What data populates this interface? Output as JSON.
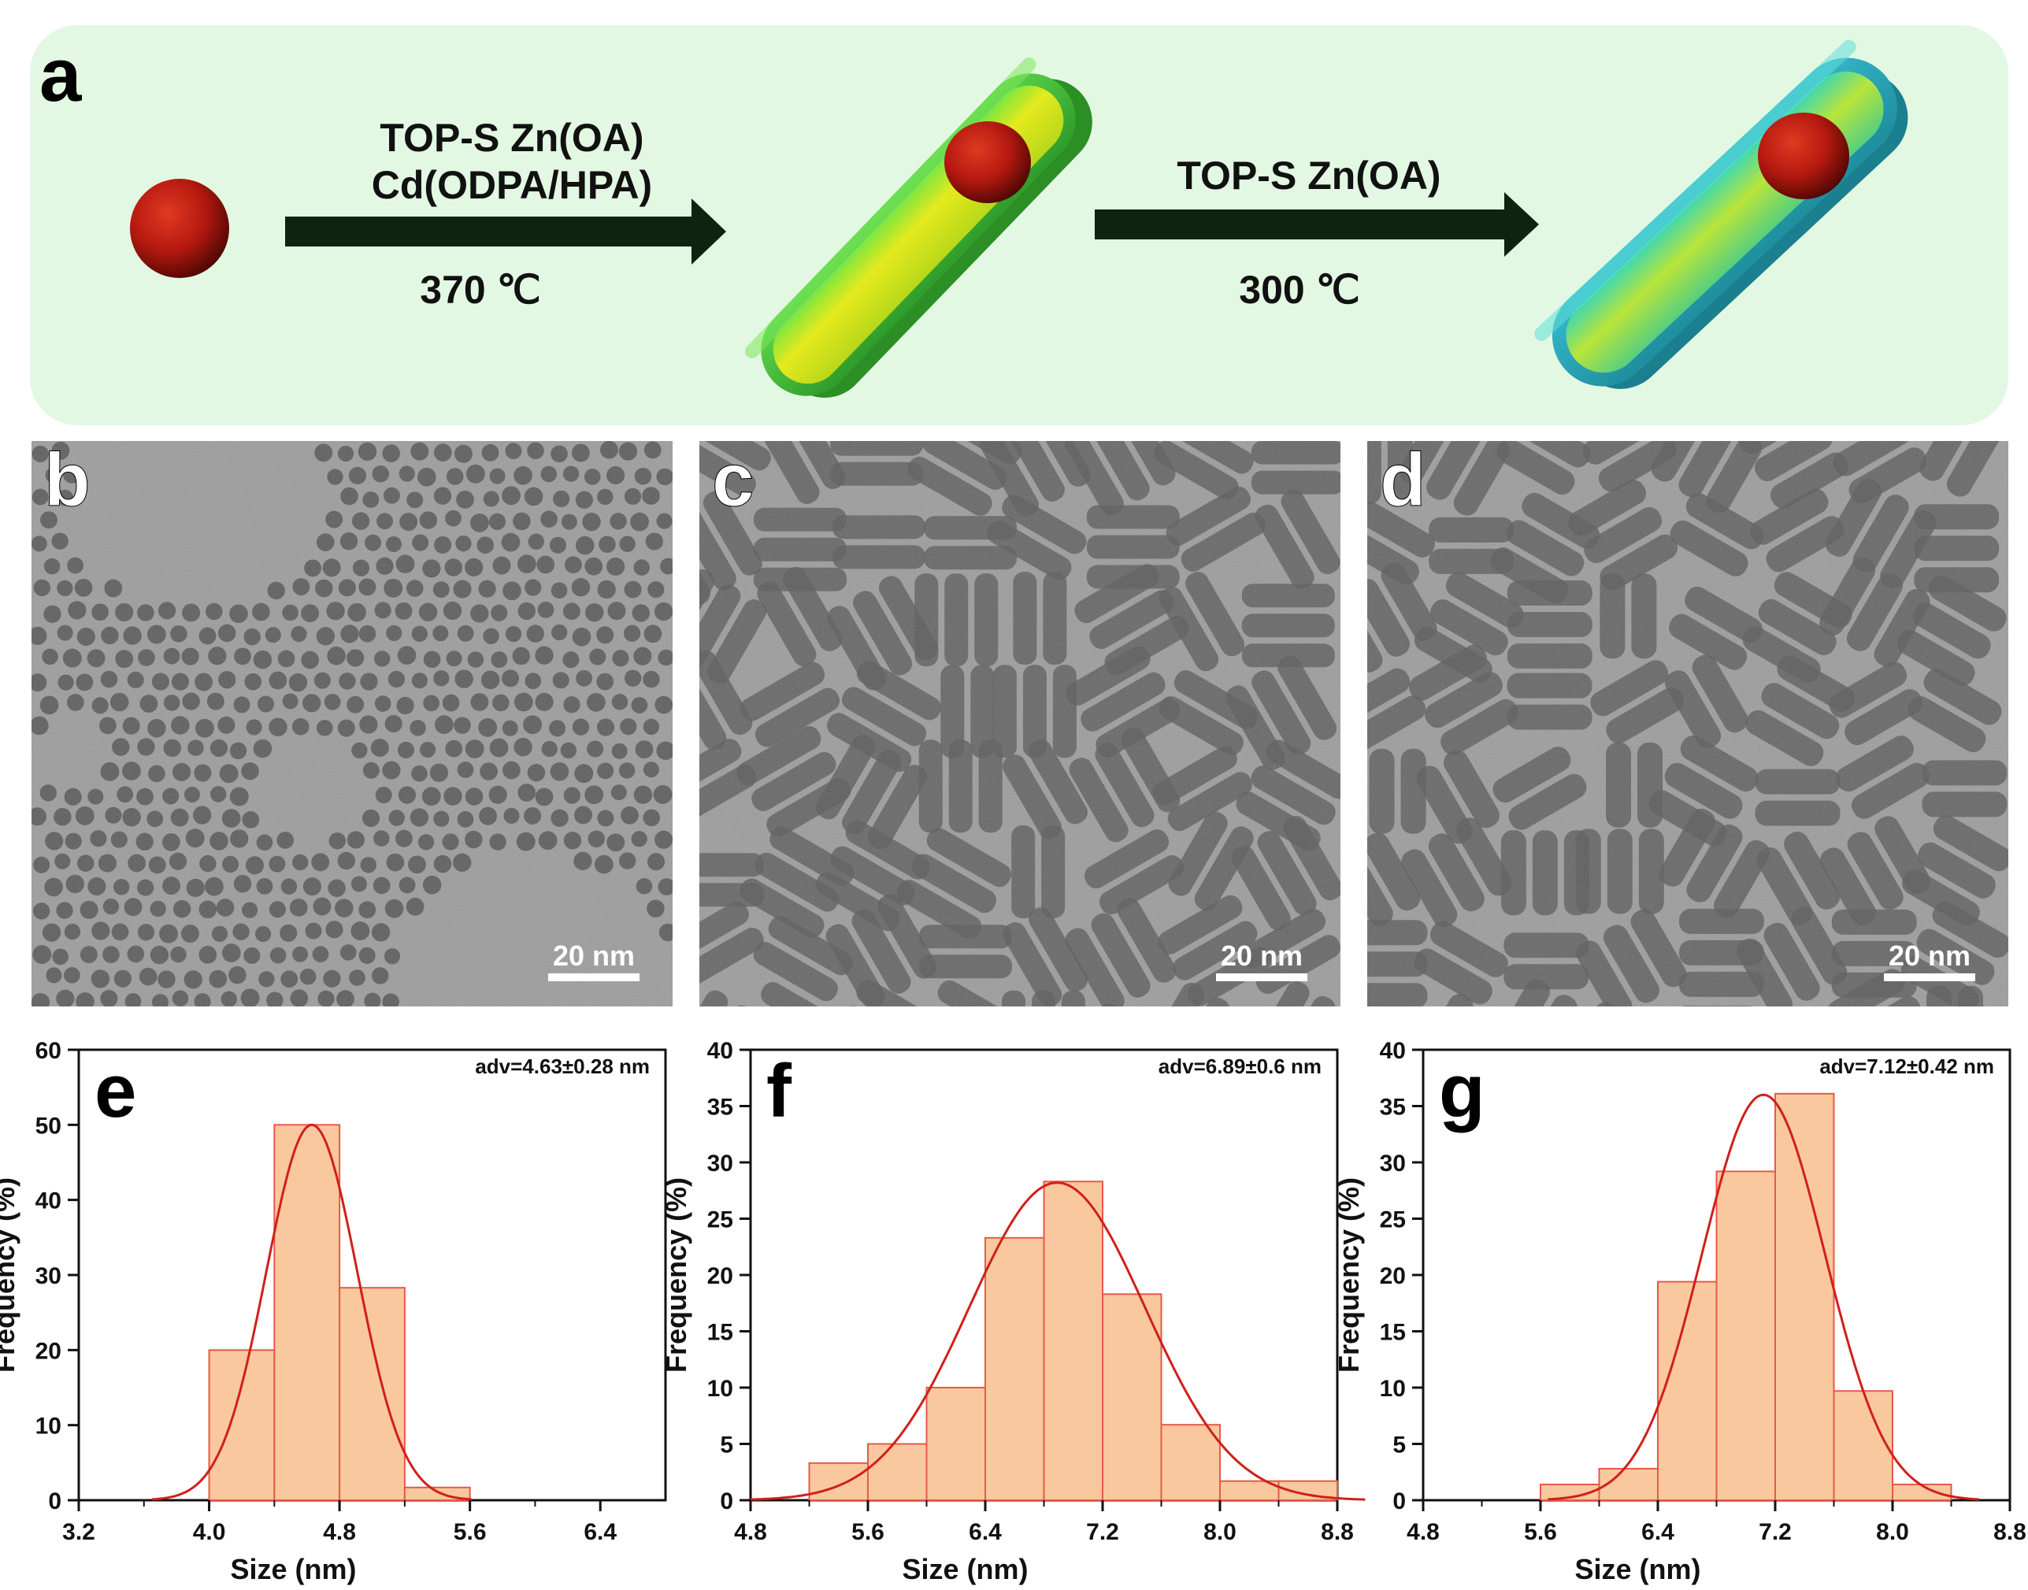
{
  "panel_a": {
    "letter": "a",
    "step1": {
      "line1": "TOP-S   Zn(OA)",
      "line2": "Cd(ODPA/HPA)",
      "temp": "370 ℃"
    },
    "step2": {
      "line1": "TOP-S   Zn(OA)",
      "temp": "300 ℃"
    },
    "colors": {
      "background": "#e3f8e3",
      "core": "#b3180f",
      "rod_inner": "#dfe822",
      "rod_shell": "#49c23a",
      "outer_shell": "#35c6b8",
      "arrow": "#0f2410"
    }
  },
  "tem": [
    {
      "letter": "b",
      "scale": "20 nm",
      "particle": "dot"
    },
    {
      "letter": "c",
      "scale": "20 nm",
      "particle": "rod"
    },
    {
      "letter": "d",
      "scale": "20 nm",
      "particle": "rod"
    }
  ],
  "chart_data": [
    {
      "type": "bar",
      "panel": "e",
      "annotation": "adv=4.63±0.28 nm",
      "xlabel": "Size (nm)",
      "ylabel": "Frequency (%)",
      "xlim": [
        3.2,
        6.8
      ],
      "ylim": [
        0,
        60
      ],
      "xticks": [
        "3.2",
        "4.0",
        "4.8",
        "5.6",
        "6.4"
      ],
      "yticks": [
        "0",
        "10",
        "20",
        "30",
        "40",
        "50",
        "60"
      ],
      "bins": [
        {
          "x0": 4.0,
          "x1": 4.4,
          "value": 20
        },
        {
          "x0": 4.4,
          "x1": 4.8,
          "value": 50
        },
        {
          "x0": 4.8,
          "x1": 5.2,
          "value": 28.3
        },
        {
          "x0": 5.2,
          "x1": 5.6,
          "value": 1.7
        }
      ],
      "fit": {
        "center": 4.63,
        "sigma": 0.28,
        "peak": 50
      }
    },
    {
      "type": "bar",
      "panel": "f",
      "annotation": "adv=6.89±0.6 nm",
      "xlabel": "Size (nm)",
      "ylabel": "Frequency (%)",
      "xlim": [
        4.8,
        8.8
      ],
      "ylim": [
        0,
        40
      ],
      "xticks": [
        "4.8",
        "5.6",
        "6.4",
        "7.2",
        "8.0",
        "8.8"
      ],
      "yticks": [
        "0",
        "5",
        "10",
        "15",
        "20",
        "25",
        "30",
        "35",
        "40"
      ],
      "bins": [
        {
          "x0": 5.2,
          "x1": 5.6,
          "value": 3.3
        },
        {
          "x0": 5.6,
          "x1": 6.0,
          "value": 5
        },
        {
          "x0": 6.0,
          "x1": 6.4,
          "value": 10
        },
        {
          "x0": 6.4,
          "x1": 6.8,
          "value": 23.3
        },
        {
          "x0": 6.8,
          "x1": 7.2,
          "value": 28.3
        },
        {
          "x0": 7.2,
          "x1": 7.6,
          "value": 18.3
        },
        {
          "x0": 7.6,
          "x1": 8.0,
          "value": 6.7
        },
        {
          "x0": 8.0,
          "x1": 8.4,
          "value": 1.7
        },
        {
          "x0": 8.4,
          "x1": 8.8,
          "value": 1.7
        }
      ],
      "fit": {
        "center": 6.89,
        "sigma": 0.6,
        "peak": 28.2
      }
    },
    {
      "type": "bar",
      "panel": "g",
      "annotation": "adv=7.12±0.42 nm",
      "xlabel": "Size (nm)",
      "ylabel": "Frequency (%)",
      "xlim": [
        4.8,
        8.8
      ],
      "ylim": [
        0,
        40
      ],
      "xticks": [
        "4.8",
        "5.6",
        "6.4",
        "7.2",
        "8.0",
        "8.8"
      ],
      "yticks": [
        "0",
        "5",
        "10",
        "15",
        "20",
        "25",
        "30",
        "35",
        "40"
      ],
      "bins": [
        {
          "x0": 5.6,
          "x1": 6.0,
          "value": 1.4
        },
        {
          "x0": 6.0,
          "x1": 6.4,
          "value": 2.8
        },
        {
          "x0": 6.4,
          "x1": 6.8,
          "value": 19.4
        },
        {
          "x0": 6.8,
          "x1": 7.2,
          "value": 29.2
        },
        {
          "x0": 7.2,
          "x1": 7.6,
          "value": 36.1
        },
        {
          "x0": 7.6,
          "x1": 8.0,
          "value": 9.7
        },
        {
          "x0": 8.0,
          "x1": 8.4,
          "value": 1.4
        }
      ],
      "fit": {
        "center": 7.12,
        "sigma": 0.42,
        "peak": 36
      }
    }
  ]
}
